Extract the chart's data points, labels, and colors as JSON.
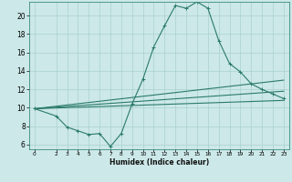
{
  "title": "",
  "xlabel": "Humidex (Indice chaleur)",
  "ylabel": "",
  "bg_color": "#cce8e8",
  "grid_color": "#aad0d0",
  "line_color": "#2a7a6a",
  "xlim": [
    -0.5,
    23.5
  ],
  "ylim": [
    5.5,
    21.5
  ],
  "xticks": [
    0,
    2,
    3,
    4,
    5,
    6,
    7,
    8,
    9,
    10,
    11,
    12,
    13,
    14,
    15,
    16,
    17,
    18,
    19,
    20,
    21,
    22,
    23
  ],
  "yticks": [
    6,
    8,
    10,
    12,
    14,
    16,
    18,
    20
  ],
  "line1_x": [
    0,
    2,
    3,
    4,
    5,
    6,
    7,
    8,
    9,
    10,
    11,
    12,
    13,
    14,
    15,
    16,
    17,
    18,
    19,
    20,
    21,
    22,
    23
  ],
  "line1_y": [
    9.9,
    9.1,
    7.9,
    7.5,
    7.1,
    7.2,
    5.8,
    7.2,
    10.4,
    13.1,
    16.6,
    18.9,
    21.1,
    20.8,
    21.5,
    20.8,
    17.3,
    14.8,
    13.9,
    12.6,
    12.0,
    11.5,
    11.0
  ],
  "line2_x": [
    0,
    23
  ],
  "line2_y": [
    9.9,
    13.0
  ],
  "line3_x": [
    0,
    23
  ],
  "line3_y": [
    9.9,
    11.8
  ],
  "line4_x": [
    0,
    23
  ],
  "line4_y": [
    9.9,
    10.8
  ]
}
